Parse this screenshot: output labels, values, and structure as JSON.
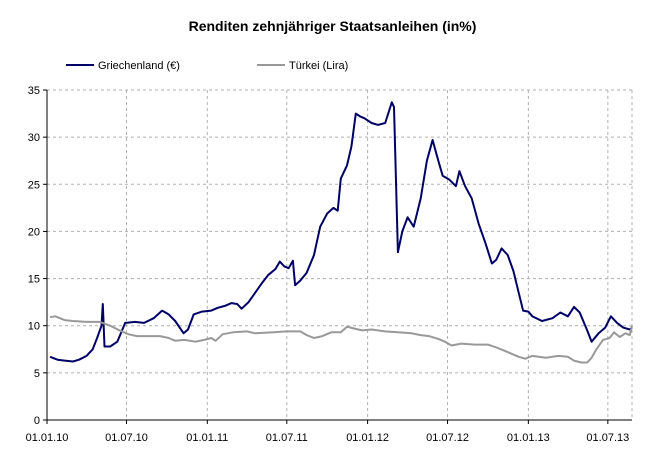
{
  "chart_data": {
    "type": "line",
    "title": "Renditen zehnjähriger Staatsanleihen (in%)",
    "xlabel": "",
    "ylabel": "",
    "ylim": [
      0,
      35
    ],
    "yticks": [
      0,
      5,
      10,
      15,
      20,
      25,
      30,
      35
    ],
    "xlim": [
      "2010-01-01",
      "2013-08-25"
    ],
    "xticks": [
      "01.01.10",
      "01.07.10",
      "01.01.11",
      "01.07.11",
      "01.01.12",
      "01.07.12",
      "01.01.13",
      "01.07.13"
    ],
    "grid": true,
    "legend_position": "top-left",
    "series": [
      {
        "name": "Griechenland (€)",
        "color": "#000066",
        "points": [
          [
            "2010-01-08",
            6.7
          ],
          [
            "2010-01-25",
            6.4
          ],
          [
            "2010-02-10",
            6.3
          ],
          [
            "2010-03-01",
            6.2
          ],
          [
            "2010-03-15",
            6.4
          ],
          [
            "2010-04-01",
            6.8
          ],
          [
            "2010-04-15",
            7.5
          ],
          [
            "2010-04-25",
            8.7
          ],
          [
            "2010-05-05",
            10.0
          ],
          [
            "2010-05-08",
            12.3
          ],
          [
            "2010-05-12",
            7.8
          ],
          [
            "2010-05-25",
            7.8
          ],
          [
            "2010-06-10",
            8.3
          ],
          [
            "2010-06-28",
            10.3
          ],
          [
            "2010-07-20",
            10.4
          ],
          [
            "2010-08-10",
            10.3
          ],
          [
            "2010-09-01",
            10.8
          ],
          [
            "2010-09-20",
            11.6
          ],
          [
            "2010-10-05",
            11.2
          ],
          [
            "2010-10-20",
            10.5
          ],
          [
            "2010-11-08",
            9.2
          ],
          [
            "2010-11-18",
            9.6
          ],
          [
            "2010-12-01",
            11.2
          ],
          [
            "2010-12-20",
            11.5
          ],
          [
            "2011-01-10",
            11.6
          ],
          [
            "2011-01-25",
            11.9
          ],
          [
            "2011-02-10",
            12.1
          ],
          [
            "2011-02-25",
            12.4
          ],
          [
            "2011-03-10",
            12.3
          ],
          [
            "2011-03-20",
            11.8
          ],
          [
            "2011-04-05",
            12.5
          ],
          [
            "2011-04-20",
            13.5
          ],
          [
            "2011-05-05",
            14.5
          ],
          [
            "2011-05-20",
            15.4
          ],
          [
            "2011-06-05",
            16.0
          ],
          [
            "2011-06-15",
            16.8
          ],
          [
            "2011-06-25",
            16.3
          ],
          [
            "2011-07-05",
            16.1
          ],
          [
            "2011-07-15",
            16.9
          ],
          [
            "2011-07-20",
            14.3
          ],
          [
            "2011-08-01",
            14.8
          ],
          [
            "2011-08-15",
            15.6
          ],
          [
            "2011-09-01",
            17.5
          ],
          [
            "2011-09-15",
            20.5
          ],
          [
            "2011-10-01",
            21.9
          ],
          [
            "2011-10-15",
            22.5
          ],
          [
            "2011-10-25",
            22.2
          ],
          [
            "2011-11-01",
            25.6
          ],
          [
            "2011-11-15",
            27.0
          ],
          [
            "2011-11-25",
            29.0
          ],
          [
            "2011-12-05",
            32.5
          ],
          [
            "2011-12-15",
            32.2
          ],
          [
            "2011-12-25",
            32.0
          ],
          [
            "2012-01-10",
            31.5
          ],
          [
            "2012-01-25",
            31.3
          ],
          [
            "2012-02-10",
            31.5
          ],
          [
            "2012-02-25",
            33.7
          ],
          [
            "2012-03-01",
            33.2
          ],
          [
            "2012-03-10",
            17.8
          ],
          [
            "2012-03-20",
            20.0
          ],
          [
            "2012-04-01",
            21.5
          ],
          [
            "2012-04-15",
            20.5
          ],
          [
            "2012-05-01",
            23.5
          ],
          [
            "2012-05-15",
            27.5
          ],
          [
            "2012-05-28",
            29.7
          ],
          [
            "2012-06-10",
            27.5
          ],
          [
            "2012-06-20",
            25.9
          ],
          [
            "2012-07-05",
            25.5
          ],
          [
            "2012-07-20",
            24.8
          ],
          [
            "2012-07-28",
            26.4
          ],
          [
            "2012-08-10",
            24.8
          ],
          [
            "2012-08-25",
            23.5
          ],
          [
            "2012-09-10",
            20.8
          ],
          [
            "2012-09-25",
            18.8
          ],
          [
            "2012-10-10",
            16.6
          ],
          [
            "2012-10-20",
            17.0
          ],
          [
            "2012-11-01",
            18.2
          ],
          [
            "2012-11-15",
            17.5
          ],
          [
            "2012-11-28",
            15.8
          ],
          [
            "2012-12-10",
            13.5
          ],
          [
            "2012-12-20",
            11.6
          ],
          [
            "2013-01-01",
            11.5
          ],
          [
            "2013-01-10",
            11.0
          ],
          [
            "2013-02-01",
            10.5
          ],
          [
            "2013-02-25",
            10.8
          ],
          [
            "2013-03-15",
            11.4
          ],
          [
            "2013-04-01",
            11.0
          ],
          [
            "2013-04-15",
            12.0
          ],
          [
            "2013-04-28",
            11.4
          ],
          [
            "2013-05-15",
            9.5
          ],
          [
            "2013-05-25",
            8.3
          ],
          [
            "2013-06-10",
            9.2
          ],
          [
            "2013-06-25",
            9.8
          ],
          [
            "2013-07-08",
            11.0
          ],
          [
            "2013-07-22",
            10.3
          ],
          [
            "2013-08-05",
            9.8
          ],
          [
            "2013-08-20",
            9.6
          ],
          [
            "2013-08-25",
            9.8
          ]
        ]
      },
      {
        "name": "Türkei (Lira)",
        "color": "#999999",
        "points": [
          [
            "2010-01-08",
            10.9
          ],
          [
            "2010-01-20",
            11.0
          ],
          [
            "2010-02-10",
            10.6
          ],
          [
            "2010-03-01",
            10.5
          ],
          [
            "2010-04-01",
            10.4
          ],
          [
            "2010-05-01",
            10.4
          ],
          [
            "2010-05-25",
            10.0
          ],
          [
            "2010-06-15",
            9.5
          ],
          [
            "2010-07-05",
            9.1
          ],
          [
            "2010-07-25",
            8.9
          ],
          [
            "2010-08-20",
            8.9
          ],
          [
            "2010-09-15",
            8.9
          ],
          [
            "2010-10-05",
            8.7
          ],
          [
            "2010-10-20",
            8.4
          ],
          [
            "2010-11-10",
            8.5
          ],
          [
            "2010-12-05",
            8.3
          ],
          [
            "2010-12-25",
            8.5
          ],
          [
            "2011-01-10",
            8.7
          ],
          [
            "2011-01-20",
            8.4
          ],
          [
            "2011-02-05",
            9.1
          ],
          [
            "2011-03-01",
            9.3
          ],
          [
            "2011-04-01",
            9.4
          ],
          [
            "2011-04-20",
            9.2
          ],
          [
            "2011-06-01",
            9.3
          ],
          [
            "2011-07-01",
            9.4
          ],
          [
            "2011-08-01",
            9.4
          ],
          [
            "2011-08-15",
            9.0
          ],
          [
            "2011-09-01",
            8.7
          ],
          [
            "2011-09-20",
            8.9
          ],
          [
            "2011-10-10",
            9.3
          ],
          [
            "2011-11-01",
            9.3
          ],
          [
            "2011-11-15",
            9.9
          ],
          [
            "2011-12-01",
            9.7
          ],
          [
            "2011-12-20",
            9.5
          ],
          [
            "2012-01-10",
            9.6
          ],
          [
            "2012-02-10",
            9.4
          ],
          [
            "2012-03-10",
            9.3
          ],
          [
            "2012-04-10",
            9.2
          ],
          [
            "2012-05-01",
            9.0
          ],
          [
            "2012-05-20",
            8.9
          ],
          [
            "2012-06-10",
            8.6
          ],
          [
            "2012-06-25",
            8.3
          ],
          [
            "2012-07-10",
            7.9
          ],
          [
            "2012-08-01",
            8.1
          ],
          [
            "2012-09-01",
            8.0
          ],
          [
            "2012-10-01",
            8.0
          ],
          [
            "2012-10-20",
            7.7
          ],
          [
            "2012-11-15",
            7.2
          ],
          [
            "2012-12-10",
            6.7
          ],
          [
            "2012-12-25",
            6.5
          ],
          [
            "2013-01-10",
            6.8
          ],
          [
            "2013-02-10",
            6.6
          ],
          [
            "2013-03-10",
            6.8
          ],
          [
            "2013-04-01",
            6.7
          ],
          [
            "2013-04-15",
            6.3
          ],
          [
            "2013-05-01",
            6.1
          ],
          [
            "2013-05-15",
            6.1
          ],
          [
            "2013-05-25",
            6.6
          ],
          [
            "2013-06-05",
            7.5
          ],
          [
            "2013-06-20",
            8.5
          ],
          [
            "2013-07-05",
            8.7
          ],
          [
            "2013-07-15",
            9.3
          ],
          [
            "2013-07-28",
            8.8
          ],
          [
            "2013-08-10",
            9.2
          ],
          [
            "2013-08-20",
            9.0
          ],
          [
            "2013-08-25",
            10.0
          ]
        ]
      }
    ]
  }
}
